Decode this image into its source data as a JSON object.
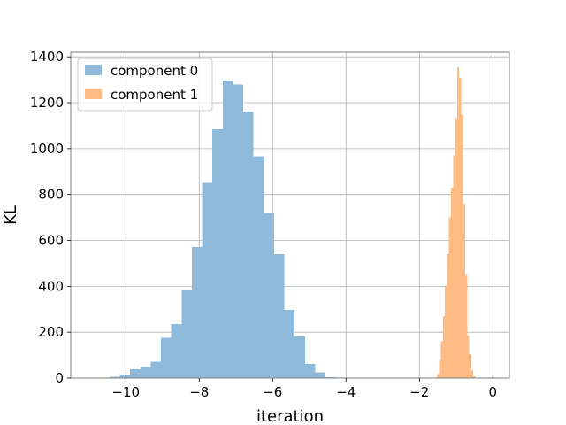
{
  "chart_data": {
    "type": "bar",
    "subtype": "histogram",
    "title": "",
    "xlabel": "iteration",
    "ylabel": "KL",
    "xlim": [
      -11.5,
      0.45
    ],
    "ylim": [
      0,
      1420
    ],
    "xticks": [
      -10,
      -8,
      -6,
      -4,
      -2,
      0
    ],
    "xtick_labels": [
      "−10",
      "−8",
      "−6",
      "−4",
      "−2",
      "0"
    ],
    "yticks": [
      0,
      200,
      400,
      600,
      800,
      1000,
      1200,
      1400
    ],
    "ytick_labels": [
      "0",
      "200",
      "400",
      "600",
      "800",
      "1000",
      "1200",
      "1400"
    ],
    "grid": true,
    "legend_position": "top-left",
    "series": [
      {
        "name": "component 0",
        "color": "#8fb9d9",
        "bin_width": 0.28,
        "bins": [
          {
            "x0": -10.72,
            "value": 2
          },
          {
            "x0": -10.44,
            "value": 6
          },
          {
            "x0": -10.16,
            "value": 15
          },
          {
            "x0": -9.88,
            "value": 38
          },
          {
            "x0": -9.6,
            "value": 50
          },
          {
            "x0": -9.32,
            "value": 72
          },
          {
            "x0": -9.04,
            "value": 175
          },
          {
            "x0": -8.76,
            "value": 235
          },
          {
            "x0": -8.48,
            "value": 382
          },
          {
            "x0": -8.2,
            "value": 572
          },
          {
            "x0": -7.92,
            "value": 850
          },
          {
            "x0": -7.64,
            "value": 1085
          },
          {
            "x0": -7.36,
            "value": 1297
          },
          {
            "x0": -7.08,
            "value": 1280
          },
          {
            "x0": -6.8,
            "value": 1162
          },
          {
            "x0": -6.52,
            "value": 967
          },
          {
            "x0": -6.24,
            "value": 720
          },
          {
            "x0": -5.96,
            "value": 540
          },
          {
            "x0": -5.68,
            "value": 298
          },
          {
            "x0": -5.4,
            "value": 182
          },
          {
            "x0": -5.12,
            "value": 62
          },
          {
            "x0": -4.84,
            "value": 25
          },
          {
            "x0": -4.56,
            "value": 4
          }
        ]
      },
      {
        "name": "component 1",
        "color": "#ffbb84",
        "bin_width": 0.055,
        "bins": [
          {
            "x0": -1.58,
            "value": 3
          },
          {
            "x0": -1.525,
            "value": 18
          },
          {
            "x0": -1.47,
            "value": 75
          },
          {
            "x0": -1.415,
            "value": 160
          },
          {
            "x0": -1.36,
            "value": 270
          },
          {
            "x0": -1.305,
            "value": 403
          },
          {
            "x0": -1.25,
            "value": 540
          },
          {
            "x0": -1.195,
            "value": 700
          },
          {
            "x0": -1.14,
            "value": 830
          },
          {
            "x0": -1.085,
            "value": 970
          },
          {
            "x0": -1.03,
            "value": 1133
          },
          {
            "x0": -0.975,
            "value": 1355
          },
          {
            "x0": -0.92,
            "value": 1308
          },
          {
            "x0": -0.865,
            "value": 1148
          },
          {
            "x0": -0.81,
            "value": 760
          },
          {
            "x0": -0.755,
            "value": 450
          },
          {
            "x0": -0.7,
            "value": 185
          },
          {
            "x0": -0.645,
            "value": 102
          },
          {
            "x0": -0.59,
            "value": 32
          },
          {
            "x0": -0.535,
            "value": 8
          },
          {
            "x0": -0.48,
            "value": 2
          }
        ]
      }
    ]
  },
  "colors": {
    "grid": "#b0b0b0",
    "spine": "#7f7f7f",
    "legend_border": "#cccccc"
  }
}
